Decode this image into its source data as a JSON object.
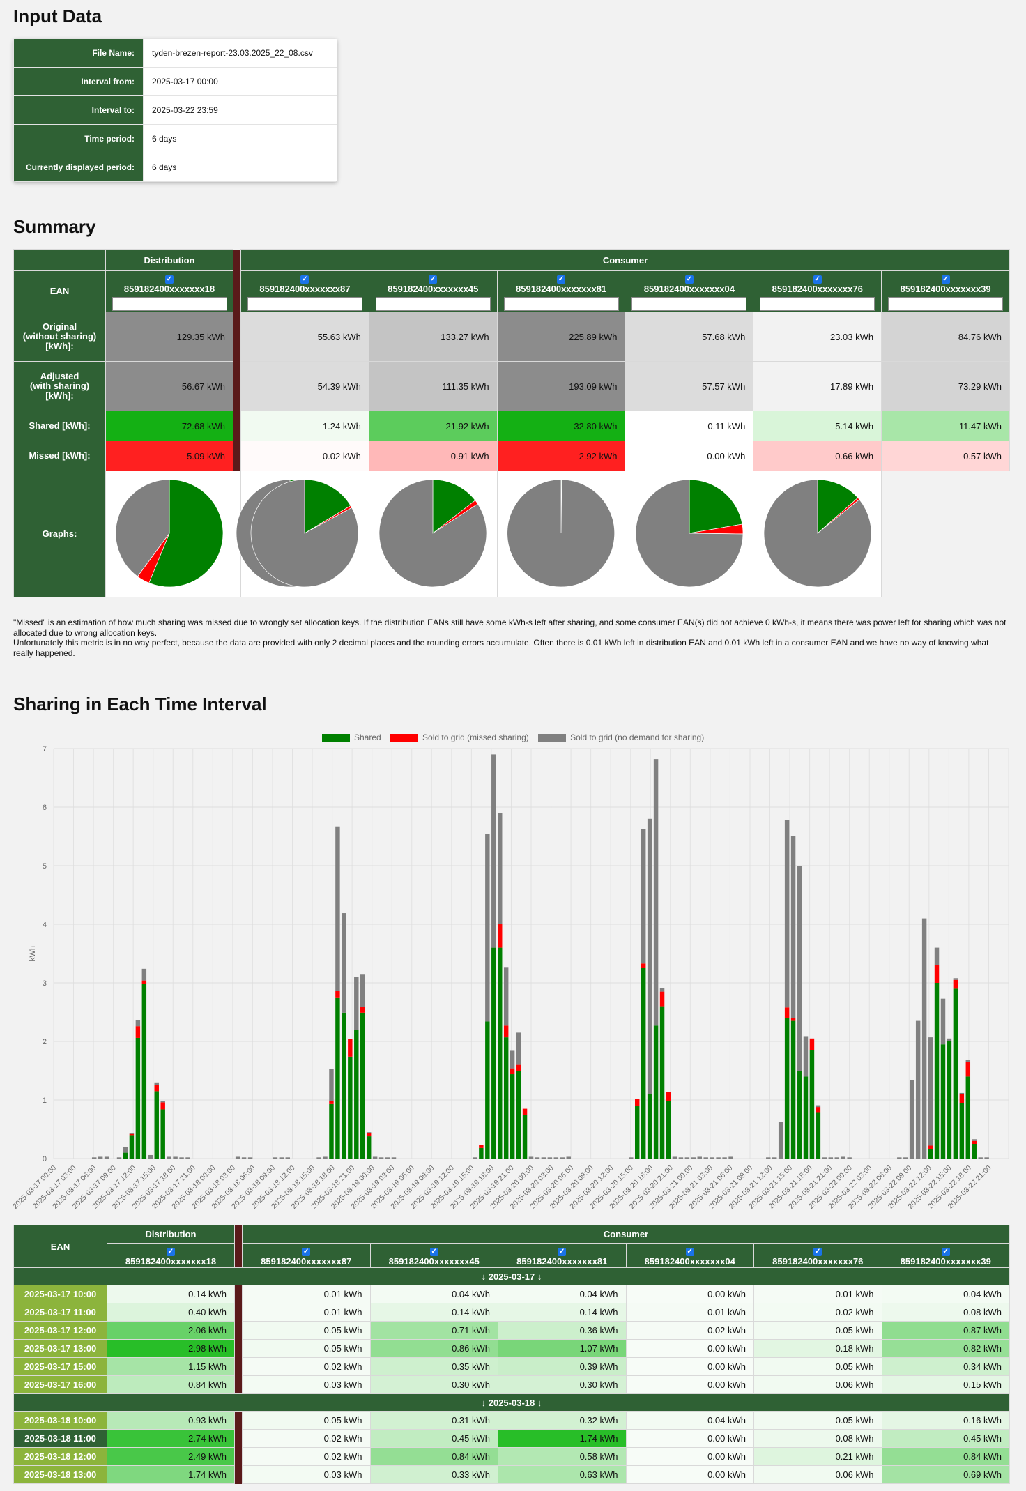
{
  "input_data": {
    "heading": "Input Data",
    "rows": [
      {
        "label": "File Name:",
        "value": "tyden-brezen-report-23.03.2025_22_08.csv"
      },
      {
        "label": "Interval from:",
        "value": "2025-03-17 00:00"
      },
      {
        "label": "Interval to:",
        "value": "2025-03-22 23:59"
      },
      {
        "label": "Time period:",
        "value": "6 days"
      },
      {
        "label": "Currently displayed period:",
        "value": "6 days"
      }
    ]
  },
  "summary": {
    "heading": "Summary",
    "distribution_label": "Distribution",
    "consumer_label": "Consumer",
    "ean_label": "EAN",
    "row_labels": {
      "original": "Original\n(without sharing)\n[kWh]:",
      "adjusted": "Adjusted\n(with sharing)\n[kWh]:",
      "shared": "Shared [kWh]:",
      "missed": "Missed [kWh]:",
      "graphs": "Graphs:"
    },
    "columns": [
      {
        "ean": "859182400xxxxxxx18",
        "original": "129.35 kWh",
        "adjusted": "56.67 kWh",
        "shared": "72.68 kWh",
        "missed": "5.09 kWh",
        "orig_bg": "#8c8c8c",
        "adj_bg": "#8c8c8c",
        "shared_bg": "#14b014",
        "missed_bg": "#ff2020",
        "pie": [
          0.562,
          0.039,
          0.399
        ]
      },
      {
        "ean": "859182400xxxxxxx87",
        "original": "55.63 kWh",
        "adjusted": "54.39 kWh",
        "shared": "1.24 kWh",
        "missed": "0.02 kWh",
        "orig_bg": "#dcdcdc",
        "adj_bg": "#dcdcdc",
        "shared_bg": "#f1faf1",
        "missed_bg": "#fffafa",
        "pie": [
          0.022,
          0.001,
          0.977
        ]
      },
      {
        "ean": "859182400xxxxxxx45",
        "original": "133.27 kWh",
        "adjusted": "111.35 kWh",
        "shared": "21.92 kWh",
        "missed": "0.91 kWh",
        "orig_bg": "#c4c4c4",
        "adj_bg": "#c4c4c4",
        "shared_bg": "#5ccc5c",
        "missed_bg": "#ffb8b8",
        "pie": [
          0.164,
          0.007,
          0.829
        ]
      },
      {
        "ean": "859182400xxxxxxx81",
        "original": "225.89 kWh",
        "adjusted": "193.09 kWh",
        "shared": "32.80 kWh",
        "missed": "2.92 kWh",
        "orig_bg": "#8c8c8c",
        "adj_bg": "#8c8c8c",
        "shared_bg": "#14b014",
        "missed_bg": "#ff2020",
        "pie": [
          0.145,
          0.013,
          0.842
        ]
      },
      {
        "ean": "859182400xxxxxxx04",
        "original": "57.68 kWh",
        "adjusted": "57.57 kWh",
        "shared": "0.11 kWh",
        "missed": "0.00 kWh",
        "orig_bg": "#dcdcdc",
        "adj_bg": "#dcdcdc",
        "shared_bg": "#ffffff",
        "missed_bg": "#ffffff",
        "pie": [
          0.002,
          0.0,
          0.998
        ]
      },
      {
        "ean": "859182400xxxxxxx76",
        "original": "23.03 kWh",
        "adjusted": "17.89 kWh",
        "shared": "5.14 kWh",
        "missed": "0.66 kWh",
        "orig_bg": "#f2f2f2",
        "adj_bg": "#f2f2f2",
        "shared_bg": "#d9f5d9",
        "missed_bg": "#ffcaca",
        "pie": [
          0.223,
          0.029,
          0.748
        ]
      },
      {
        "ean": "859182400xxxxxxx39",
        "original": "84.76 kWh",
        "adjusted": "73.29 kWh",
        "shared": "11.47 kWh",
        "missed": "0.57 kWh",
        "orig_bg": "#d4d4d4",
        "adj_bg": "#d4d4d4",
        "shared_bg": "#a8e6a8",
        "missed_bg": "#ffd6d6",
        "pie": [
          0.135,
          0.007,
          0.858
        ]
      }
    ],
    "note_lines": [
      "\"Missed\" is an estimation of how much sharing was missed due to wrongly set allocation keys. If the distribution EANs still have some kWh-s left after sharing, and some consumer EAN(s) did not achieve 0 kWh-s, it means there was power left for sharing which was not allocated due to wrong allocation keys.",
      "Unfortunately this metric is in no way perfect, because the data are provided with only 2 decimal places and the rounding errors accumulate. Often there is 0.01 kWh left in distribution EAN and 0.01 kWh left in a consumer EAN and we have no way of knowing what really happened."
    ],
    "colors": {
      "shared": "#008000",
      "missed": "#ff0000",
      "no_demand": "#808080"
    }
  },
  "chart_section": {
    "heading": "Sharing in Each Time Interval",
    "legend": [
      "Shared",
      "Sold to grid (missed sharing)",
      "Sold to grid (no demand for sharing)"
    ],
    "ylabel": "kWh"
  },
  "chart_data": {
    "type": "bar",
    "stacked": true,
    "ylim": [
      0,
      7
    ],
    "yticks": [
      0,
      1,
      2,
      3,
      4,
      5,
      6,
      7
    ],
    "ylabel": "kWh",
    "x_tick_labels": [
      "2025-03-17 00:00",
      "2025-03-17 03:00",
      "2025-03-17 06:00",
      "2025-03-17 09:00",
      "2025-03-17 12:00",
      "2025-03-17 15:00",
      "2025-03-17 18:00",
      "2025-03-17 21:00",
      "2025-03-18 00:00",
      "2025-03-18 03:00",
      "2025-03-18 06:00",
      "2025-03-18 09:00",
      "2025-03-18 12:00",
      "2025-03-18 15:00",
      "2025-03-18 18:00",
      "2025-03-18 21:00",
      "2025-03-19 00:00",
      "2025-03-19 03:00",
      "2025-03-19 06:00",
      "2025-03-19 09:00",
      "2025-03-19 12:00",
      "2025-03-19 15:00",
      "2025-03-19 18:00",
      "2025-03-19 21:00",
      "2025-03-20 00:00",
      "2025-03-20 03:00",
      "2025-03-20 06:00",
      "2025-03-20 09:00",
      "2025-03-20 12:00",
      "2025-03-20 15:00",
      "2025-03-20 18:00",
      "2025-03-20 21:00",
      "2025-03-21 00:00",
      "2025-03-21 03:00",
      "2025-03-21 06:00",
      "2025-03-21 09:00",
      "2025-03-21 12:00",
      "2025-03-21 15:00",
      "2025-03-21 18:00",
      "2025-03-21 21:00",
      "2025-03-22 00:00",
      "2025-03-22 03:00",
      "2025-03-22 06:00",
      "2025-03-22 09:00",
      "2025-03-22 12:00",
      "2025-03-22 15:00",
      "2025-03-22 18:00",
      "2025-03-22 21:00"
    ],
    "series": [
      {
        "name": "Shared",
        "values": [
          0,
          0,
          0,
          0,
          0,
          0,
          0,
          0,
          0,
          0,
          0,
          0.1,
          0.4,
          2.06,
          2.98,
          0,
          1.15,
          0.84,
          0,
          0,
          0,
          0,
          0,
          0,
          0,
          0,
          0,
          0,
          0,
          0,
          0,
          0,
          0,
          0,
          0,
          0,
          0,
          0,
          0,
          0,
          0,
          0,
          0,
          0,
          0.93,
          2.74,
          2.49,
          1.74,
          2.2,
          2.49,
          0.38,
          0,
          0,
          0,
          0,
          0,
          0,
          0,
          0,
          0,
          0,
          0,
          0,
          0,
          0,
          0,
          0,
          0,
          0.18,
          2.34,
          3.6,
          3.6,
          2.07,
          1.44,
          1.5,
          0.75,
          0,
          0,
          0,
          0,
          0,
          0,
          0,
          0,
          0,
          0,
          0,
          0,
          0,
          0,
          0,
          0,
          0,
          0.9,
          3.25,
          1.1,
          2.27,
          2.6,
          0.98,
          0,
          0,
          0,
          0,
          0,
          0,
          0,
          0,
          0,
          0,
          0,
          0,
          0,
          0,
          0,
          0,
          0,
          0,
          2.4,
          2.35,
          1.5,
          1.4,
          1.85,
          0.78,
          0,
          0,
          0,
          0,
          0,
          0,
          0,
          0,
          0,
          0,
          0,
          0,
          0,
          0,
          0,
          0,
          0,
          0.16,
          3.0,
          1.95,
          2.0,
          2.9,
          0.95,
          1.4,
          0.25,
          0,
          0,
          0,
          0,
          0
        ],
        "color": "#008000"
      },
      {
        "name": "Sold to grid (missed sharing)",
        "values": [
          0,
          0,
          0,
          0,
          0,
          0,
          0,
          0,
          0,
          0,
          0,
          0,
          0.02,
          0.2,
          0.06,
          0,
          0.1,
          0.12,
          0,
          0,
          0,
          0,
          0,
          0,
          0,
          0,
          0,
          0,
          0,
          0,
          0,
          0,
          0,
          0,
          0,
          0,
          0,
          0,
          0,
          0,
          0,
          0,
          0,
          0,
          0.05,
          0.12,
          0,
          0.3,
          0,
          0.1,
          0.05,
          0,
          0,
          0,
          0,
          0,
          0,
          0,
          0,
          0,
          0,
          0,
          0,
          0,
          0,
          0,
          0,
          0,
          0.05,
          0,
          0,
          0.4,
          0.2,
          0.1,
          0.1,
          0.1,
          0,
          0,
          0,
          0,
          0,
          0,
          0,
          0,
          0,
          0,
          0,
          0,
          0,
          0,
          0,
          0,
          0,
          0.12,
          0.08,
          0,
          0,
          0.25,
          0.16,
          0,
          0,
          0,
          0,
          0,
          0,
          0,
          0,
          0,
          0,
          0,
          0,
          0,
          0,
          0,
          0,
          0,
          0,
          0.18,
          0.05,
          0,
          0,
          0.2,
          0.1,
          0,
          0,
          0,
          0,
          0,
          0,
          0,
          0,
          0,
          0,
          0,
          0,
          0,
          0,
          0,
          0,
          0,
          0.06,
          0.3,
          0,
          0,
          0.15,
          0.15,
          0.25,
          0.05,
          0,
          0,
          0,
          0,
          0
        ],
        "color": "#ff0000"
      },
      {
        "name": "Sold to grid (no demand for sharing)",
        "values": [
          0,
          0,
          0,
          0,
          0,
          0,
          0.02,
          0.03,
          0.03,
          0,
          0.02,
          0.1,
          0.02,
          0.1,
          0.2,
          0.06,
          0.05,
          0.02,
          0.03,
          0.03,
          0.02,
          0.02,
          0,
          0,
          0,
          0,
          0,
          0,
          0,
          0.03,
          0.02,
          0.02,
          0,
          0,
          0,
          0.02,
          0.02,
          0.02,
          0,
          0,
          0,
          0,
          0.02,
          0.03,
          0.55,
          2.81,
          1.7,
          0,
          0.9,
          0.55,
          0.02,
          0.03,
          0.02,
          0.02,
          0.02,
          0,
          0,
          0,
          0,
          0,
          0,
          0,
          0,
          0,
          0,
          0,
          0,
          0.02,
          0,
          3.2,
          3.3,
          1.9,
          1.0,
          0.3,
          0.55,
          0,
          0.03,
          0.02,
          0.02,
          0.02,
          0.02,
          0.02,
          0.03,
          0,
          0,
          0,
          0,
          0,
          0,
          0,
          0,
          0,
          0.02,
          0,
          2.3,
          4.7,
          4.55,
          0.06,
          0,
          0.03,
          0.02,
          0.02,
          0.02,
          0.03,
          0.02,
          0.02,
          0.02,
          0.02,
          0.03,
          0,
          0,
          0,
          0,
          0,
          0.02,
          0.02,
          0.62,
          3.2,
          3.1,
          3.5,
          0.69,
          0,
          0.03,
          0.02,
          0.02,
          0.02,
          0.03,
          0.02,
          0,
          0,
          0,
          0,
          0,
          0,
          0,
          0.02,
          0.02,
          1.34,
          2.35,
          4.1,
          1.85,
          0.3,
          0.78,
          0.05,
          0.03,
          0.02,
          0.03,
          0.03,
          0.02,
          0.02
        ],
        "color": "#808080"
      }
    ]
  },
  "detail": {
    "distribution_label": "Distribution",
    "consumer_label": "Consumer",
    "ean_label": "EAN",
    "eans": [
      "859182400xxxxxxx18",
      "859182400xxxxxxx87",
      "859182400xxxxxxx45",
      "859182400xxxxxxx81",
      "859182400xxxxxxx04",
      "859182400xxxxxxx76",
      "859182400xxxxxxx39"
    ],
    "days": [
      {
        "label": "↓ 2025-03-17 ↓",
        "rows": [
          {
            "time": "2025-03-17 10:00",
            "values": [
              "0.14 kWh",
              "0.01 kWh",
              "0.04 kWh",
              "0.04 kWh",
              "0.00 kWh",
              "0.01 kWh",
              "0.04 kWh"
            ],
            "levels": [
              0.05,
              0.01,
              0.02,
              0.02,
              0,
              0.01,
              0.02
            ]
          },
          {
            "time": "2025-03-17 11:00",
            "values": [
              "0.40 kWh",
              "0.01 kWh",
              "0.14 kWh",
              "0.14 kWh",
              "0.01 kWh",
              "0.02 kWh",
              "0.08 kWh"
            ],
            "levels": [
              0.13,
              0.01,
              0.08,
              0.08,
              0.01,
              0.02,
              0.05
            ]
          },
          {
            "time": "2025-03-17 12:00",
            "values": [
              "2.06 kWh",
              "0.05 kWh",
              "0.71 kWh",
              "0.36 kWh",
              "0.02 kWh",
              "0.05 kWh",
              "0.87 kWh"
            ],
            "levels": [
              0.69,
              0.03,
              0.41,
              0.21,
              0.01,
              0.03,
              0.5
            ]
          },
          {
            "time": "2025-03-17 13:00",
            "values": [
              "2.98 kWh",
              "0.05 kWh",
              "0.86 kWh",
              "1.07 kWh",
              "0.00 kWh",
              "0.18 kWh",
              "0.82 kWh"
            ],
            "levels": [
              1.0,
              0.03,
              0.49,
              0.61,
              0,
              0.1,
              0.47
            ]
          },
          {
            "time": "2025-03-17 15:00",
            "values": [
              "1.15 kWh",
              "0.02 kWh",
              "0.35 kWh",
              "0.39 kWh",
              "0.00 kWh",
              "0.05 kWh",
              "0.34 kWh"
            ],
            "levels": [
              0.39,
              0.01,
              0.2,
              0.22,
              0,
              0.03,
              0.2
            ]
          },
          {
            "time": "2025-03-17 16:00",
            "values": [
              "0.84 kWh",
              "0.03 kWh",
              "0.30 kWh",
              "0.30 kWh",
              "0.00 kWh",
              "0.06 kWh",
              "0.15 kWh"
            ],
            "levels": [
              0.28,
              0.02,
              0.17,
              0.17,
              0,
              0.03,
              0.09
            ]
          }
        ]
      },
      {
        "label": "↓ 2025-03-18 ↓",
        "rows": [
          {
            "time": "2025-03-18 10:00",
            "values": [
              "0.93 kWh",
              "0.05 kWh",
              "0.31 kWh",
              "0.32 kWh",
              "0.04 kWh",
              "0.05 kWh",
              "0.16 kWh"
            ],
            "levels": [
              0.31,
              0.03,
              0.18,
              0.18,
              0.02,
              0.03,
              0.09
            ]
          },
          {
            "time": "2025-03-18 11:00",
            "values": [
              "2.74 kWh",
              "0.02 kWh",
              "0.45 kWh",
              "1.74 kWh",
              "0.00 kWh",
              "0.08 kWh",
              "0.45 kWh"
            ],
            "levels": [
              0.92,
              0.01,
              0.26,
              1.0,
              0,
              0.05,
              0.26
            ]
          },
          {
            "time": "2025-03-18 12:00",
            "values": [
              "2.49 kWh",
              "0.02 kWh",
              "0.84 kWh",
              "0.58 kWh",
              "0.00 kWh",
              "0.21 kWh",
              "0.84 kWh"
            ],
            "levels": [
              0.84,
              0.01,
              0.48,
              0.33,
              0,
              0.12,
              0.48
            ]
          },
          {
            "time": "2025-03-18 13:00",
            "values": [
              "1.74 kWh",
              "0.03 kWh",
              "0.33 kWh",
              "0.63 kWh",
              "0.00 kWh",
              "0.06 kWh",
              "0.69 kWh"
            ],
            "levels": [
              0.58,
              0.02,
              0.19,
              0.36,
              0,
              0.03,
              0.4
            ]
          }
        ]
      }
    ]
  }
}
